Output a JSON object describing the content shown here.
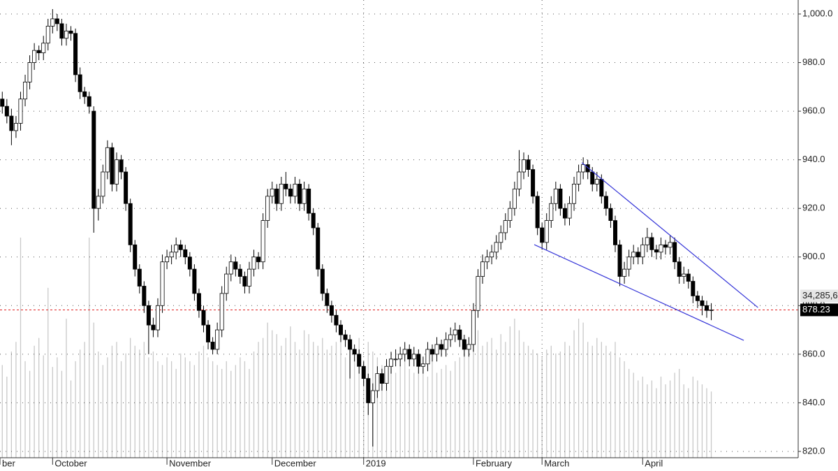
{
  "chart_data": {
    "type": "candlestick",
    "xlim": [
      -0.5,
      174
    ],
    "ylim": [
      817.4,
      1005.75
    ],
    "yticks": [
      {
        "value": 1000,
        "label": "1,000.0"
      },
      {
        "value": 980,
        "label": "980.0"
      },
      {
        "value": 960,
        "label": "960.0"
      },
      {
        "value": 940,
        "label": "940.0"
      },
      {
        "value": 920,
        "label": "920.0"
      },
      {
        "value": 900,
        "label": "900.0"
      },
      {
        "value": 880,
        "label": "880.0"
      },
      {
        "value": 860,
        "label": "860.0"
      },
      {
        "value": 840,
        "label": "840.0"
      },
      {
        "value": 820,
        "label": "820.0"
      }
    ],
    "grid": true,
    "x_labels": [
      {
        "index": -0.5,
        "label": "ber",
        "grid": false
      },
      {
        "index": 11,
        "label": "October",
        "grid": false
      },
      {
        "index": 36,
        "label": "November",
        "grid": false
      },
      {
        "index": 59,
        "label": "December",
        "grid": false
      },
      {
        "index": 79,
        "label": "2019",
        "grid": true
      },
      {
        "index": 103,
        "label": "February",
        "grid": false
      },
      {
        "index": 118,
        "label": "March",
        "grid": true
      },
      {
        "index": 140,
        "label": "April",
        "grid": false
      }
    ],
    "up_color": "#ffffff",
    "down_color": "#000000",
    "candles": [
      [
        965,
        968,
        959,
        962
      ],
      [
        962,
        965,
        955,
        958
      ],
      [
        958,
        961,
        946,
        952
      ],
      [
        952,
        958,
        949,
        955
      ],
      [
        955,
        968,
        952,
        965
      ],
      [
        965,
        975,
        962,
        972
      ],
      [
        972,
        983,
        969,
        980
      ],
      [
        980,
        988,
        977,
        985
      ],
      [
        985,
        987,
        981,
        984
      ],
      [
        984,
        991,
        981,
        988
      ],
      [
        988,
        998,
        985,
        995
      ],
      [
        995,
        1002,
        992,
        998
      ],
      [
        998,
        1000,
        993,
        996
      ],
      [
        996,
        998,
        987,
        990
      ],
      [
        990,
        996,
        987,
        993
      ],
      [
        993,
        995,
        989,
        992
      ],
      [
        992,
        994,
        972,
        975
      ],
      [
        975,
        978,
        965,
        968
      ],
      [
        968,
        970,
        963,
        966
      ],
      [
        966,
        968,
        959,
        962
      ],
      [
        960,
        962,
        910,
        920
      ],
      [
        920,
        928,
        915,
        925
      ],
      [
        925,
        938,
        922,
        935
      ],
      [
        935,
        948,
        932,
        945
      ],
      [
        945,
        947,
        927,
        930
      ],
      [
        930,
        943,
        927,
        940
      ],
      [
        940,
        942,
        932,
        935
      ],
      [
        935,
        937,
        919,
        922
      ],
      [
        922,
        924,
        902,
        905
      ],
      [
        905,
        907,
        892,
        895
      ],
      [
        895,
        897,
        885,
        888
      ],
      [
        888,
        890,
        877,
        880
      ],
      [
        880,
        882,
        860,
        872
      ],
      [
        872,
        875,
        867,
        870
      ],
      [
        870,
        883,
        867,
        880
      ],
      [
        880,
        901,
        877,
        898
      ],
      [
        898,
        903,
        895,
        900
      ],
      [
        900,
        905,
        897,
        902
      ],
      [
        902,
        908,
        899,
        905
      ],
      [
        905,
        907,
        900,
        903
      ],
      [
        903,
        905,
        897,
        900
      ],
      [
        900,
        902,
        892,
        895
      ],
      [
        895,
        897,
        882,
        885
      ],
      [
        885,
        887,
        875,
        878
      ],
      [
        878,
        880,
        869,
        872
      ],
      [
        872,
        874,
        862,
        865
      ],
      [
        865,
        867,
        860,
        862
      ],
      [
        862,
        873,
        860,
        870
      ],
      [
        870,
        888,
        867,
        885
      ],
      [
        885,
        896,
        882,
        893
      ],
      [
        893,
        901,
        890,
        898
      ],
      [
        898,
        900,
        892,
        895
      ],
      [
        895,
        897,
        889,
        892
      ],
      [
        892,
        894,
        885,
        888
      ],
      [
        888,
        898,
        885,
        895
      ],
      [
        895,
        903,
        892,
        900
      ],
      [
        900,
        902,
        895,
        898
      ],
      [
        898,
        918,
        895,
        915
      ],
      [
        915,
        928,
        912,
        925
      ],
      [
        925,
        931,
        922,
        928
      ],
      [
        928,
        930,
        919,
        922
      ],
      [
        922,
        933,
        919,
        930
      ],
      [
        930,
        935,
        925,
        928
      ],
      [
        928,
        930,
        922,
        925
      ],
      [
        925,
        933,
        922,
        930
      ],
      [
        930,
        932,
        919,
        922
      ],
      [
        922,
        931,
        919,
        928
      ],
      [
        928,
        930,
        915,
        918
      ],
      [
        918,
        920,
        909,
        912
      ],
      [
        912,
        914,
        892,
        895
      ],
      [
        895,
        897,
        882,
        885
      ],
      [
        885,
        887,
        877,
        880
      ],
      [
        880,
        882,
        873,
        876
      ],
      [
        876,
        878,
        869,
        872
      ],
      [
        872,
        874,
        865,
        868
      ],
      [
        868,
        870,
        863,
        866
      ],
      [
        866,
        868,
        850,
        862
      ],
      [
        862,
        864,
        857,
        860
      ],
      [
        860,
        862,
        852,
        855
      ],
      [
        855,
        857,
        847,
        850
      ],
      [
        850,
        852,
        835,
        840
      ],
      [
        840,
        848,
        822,
        845
      ],
      [
        845,
        855,
        842,
        852
      ],
      [
        852,
        854,
        845,
        848
      ],
      [
        848,
        858,
        845,
        855
      ],
      [
        855,
        861,
        852,
        858
      ],
      [
        858,
        862,
        855,
        858
      ],
      [
        858,
        863,
        855,
        860
      ],
      [
        860,
        865,
        857,
        862
      ],
      [
        862,
        864,
        855,
        858
      ],
      [
        858,
        863,
        855,
        860
      ],
      [
        860,
        862,
        852,
        855
      ],
      [
        855,
        859,
        852,
        856
      ],
      [
        856,
        865,
        853,
        862
      ],
      [
        862,
        864,
        857,
        860
      ],
      [
        860,
        867,
        857,
        864
      ],
      [
        864,
        866,
        859,
        862
      ],
      [
        862,
        869,
        859,
        866
      ],
      [
        866,
        871,
        863,
        868
      ],
      [
        868,
        873,
        865,
        870
      ],
      [
        870,
        872,
        863,
        866
      ],
      [
        866,
        868,
        859,
        862
      ],
      [
        862,
        867,
        859,
        864
      ],
      [
        864,
        881,
        861,
        878
      ],
      [
        878,
        895,
        875,
        892
      ],
      [
        892,
        901,
        889,
        898
      ],
      [
        898,
        903,
        895,
        900
      ],
      [
        900,
        905,
        897,
        902
      ],
      [
        902,
        909,
        899,
        906
      ],
      [
        906,
        913,
        903,
        910
      ],
      [
        910,
        918,
        907,
        915
      ],
      [
        915,
        923,
        912,
        920
      ],
      [
        920,
        931,
        917,
        928
      ],
      [
        928,
        944,
        925,
        935
      ],
      [
        935,
        943,
        932,
        940
      ],
      [
        940,
        942,
        933,
        936
      ],
      [
        936,
        938,
        922,
        925
      ],
      [
        925,
        927,
        909,
        912
      ],
      [
        912,
        914,
        903,
        906
      ],
      [
        906,
        918,
        903,
        915
      ],
      [
        915,
        925,
        912,
        922
      ],
      [
        922,
        931,
        919,
        928
      ],
      [
        928,
        930,
        917,
        920
      ],
      [
        920,
        922,
        913,
        916
      ],
      [
        916,
        925,
        913,
        922
      ],
      [
        922,
        933,
        919,
        930
      ],
      [
        930,
        938,
        927,
        935
      ],
      [
        935,
        941,
        932,
        938
      ],
      [
        938,
        940,
        932,
        935
      ],
      [
        935,
        937,
        927,
        930
      ],
      [
        930,
        935,
        927,
        932
      ],
      [
        932,
        934,
        922,
        925
      ],
      [
        925,
        927,
        917,
        920
      ],
      [
        920,
        922,
        912,
        915
      ],
      [
        915,
        917,
        902,
        905
      ],
      [
        905,
        907,
        888,
        892
      ],
      [
        892,
        898,
        889,
        895
      ],
      [
        895,
        903,
        892,
        900
      ],
      [
        900,
        905,
        897,
        902
      ],
      [
        902,
        904,
        897,
        900
      ],
      [
        900,
        908,
        897,
        905
      ],
      [
        905,
        912,
        902,
        908
      ],
      [
        908,
        910,
        900,
        903
      ],
      [
        903,
        905,
        899,
        902
      ],
      [
        902,
        908,
        899,
        905
      ],
      [
        905,
        907,
        901,
        904
      ],
      [
        904,
        909,
        901,
        906
      ],
      [
        906,
        908,
        895,
        898
      ],
      [
        898,
        900,
        889,
        892
      ],
      [
        892,
        896,
        889,
        893
      ],
      [
        893,
        895,
        887,
        890
      ],
      [
        890,
        892,
        881,
        884
      ],
      [
        884,
        886,
        879,
        882
      ],
      [
        882,
        884,
        876,
        880
      ],
      [
        880,
        882,
        875,
        878
      ],
      [
        878,
        881,
        874,
        878.23
      ]
    ],
    "volume_color": "#c8c8c8",
    "volume": [
      48000000,
      42000000,
      55000000,
      60000000,
      114000000,
      50000000,
      45000000,
      58000000,
      62000000,
      53000000,
      88000000,
      47000000,
      52000000,
      45000000,
      72000000,
      40000000,
      50000000,
      56000000,
      60000000,
      114000000,
      70000000,
      55000000,
      48000000,
      52000000,
      58000000,
      60000000,
      50000000,
      54000000,
      62000000,
      58000000,
      56000000,
      60000000,
      52000000,
      55000000,
      50000000,
      48000000,
      52000000,
      50000000,
      46000000,
      54000000,
      52000000,
      50000000,
      48000000,
      55000000,
      58000000,
      52000000,
      50000000,
      48000000,
      46000000,
      50000000,
      45000000,
      48000000,
      52000000,
      50000000,
      46000000,
      55000000,
      60000000,
      62000000,
      70000000,
      66000000,
      64000000,
      58000000,
      62000000,
      68000000,
      60000000,
      56000000,
      66000000,
      64000000,
      60000000,
      58000000,
      62000000,
      56000000,
      58000000,
      60000000,
      64000000,
      52000000,
      58000000,
      54000000,
      62000000,
      50000000,
      60000000,
      55000000,
      52000000,
      48000000,
      50000000,
      46000000,
      44000000,
      48000000,
      50000000,
      46000000,
      44000000,
      48000000,
      46000000,
      42000000,
      50000000,
      44000000,
      46000000,
      48000000,
      45000000,
      50000000,
      52000000,
      58000000,
      56000000,
      70000000,
      66000000,
      58000000,
      60000000,
      62000000,
      56000000,
      64000000,
      60000000,
      68000000,
      72000000,
      66000000,
      60000000,
      58000000,
      56000000,
      54000000,
      52000000,
      56000000,
      58000000,
      54000000,
      55000000,
      60000000,
      58000000,
      66000000,
      72000000,
      70000000,
      60000000,
      58000000,
      62000000,
      60000000,
      58000000,
      55000000,
      60000000,
      52000000,
      50000000,
      46000000,
      44000000,
      40000000,
      42000000,
      38000000,
      40000000,
      36000000,
      42000000,
      38000000,
      40000000,
      44000000,
      46000000,
      38000000,
      36000000,
      42000000,
      40000000,
      38000000,
      36000000,
      34285600
    ],
    "last_volume": {
      "value": 34285600,
      "label": "34,285,6"
    },
    "last_price": {
      "value": 878.23,
      "label": "878.23",
      "color": "#e02020"
    },
    "trendline_color": "#3535d8",
    "trendlines": [
      {
        "x": [
          126.7,
          165.2
        ],
        "y": [
          938.8,
          879.2
        ]
      },
      {
        "x": [
          116.3,
          162.1
        ],
        "y": [
          905.1,
          865.7
        ]
      }
    ]
  }
}
